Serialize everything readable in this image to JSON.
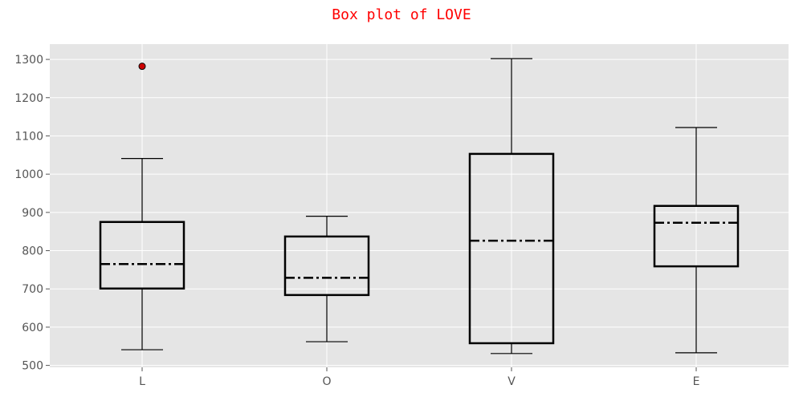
{
  "chart_data": {
    "type": "box",
    "title": "Box plot of LOVE",
    "xlabel": "",
    "ylabel": "",
    "categories": [
      "L",
      "O",
      "V",
      "E"
    ],
    "ylim": [
      495,
      1340
    ],
    "yticks": [
      500,
      600,
      700,
      800,
      900,
      1000,
      1100,
      1200,
      1300
    ],
    "grid": true,
    "boxes": [
      {
        "name": "L",
        "whisker_low": 541,
        "q1": 701,
        "median": 765,
        "q3": 875,
        "whisker_high": 1041,
        "outliers": [
          1282
        ]
      },
      {
        "name": "O",
        "whisker_low": 562,
        "q1": 684,
        "median": 729,
        "q3": 837,
        "whisker_high": 890,
        "outliers": []
      },
      {
        "name": "V",
        "whisker_low": 531,
        "q1": 558,
        "median": 826,
        "q3": 1053,
        "whisker_high": 1302,
        "outliers": []
      },
      {
        "name": "E",
        "whisker_low": 533,
        "q1": 759,
        "median": 873,
        "q3": 917,
        "whisker_high": 1122,
        "outliers": []
      }
    ],
    "colors": {
      "title": "#ff0000",
      "plot_background": "#e5e5e5",
      "grid": "#ffffff",
      "box_line": "#000000",
      "outlier_fill": "#cc0000"
    }
  }
}
